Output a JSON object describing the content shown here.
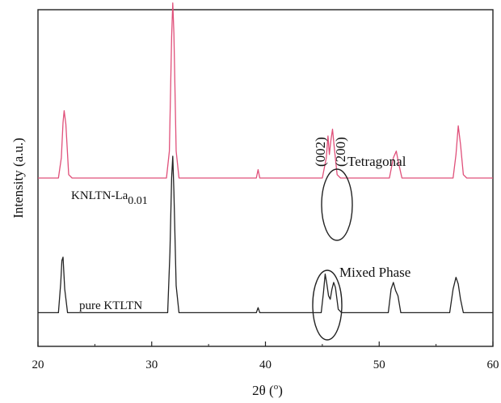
{
  "chart_data": {
    "type": "line",
    "xlabel": "2θ (°)",
    "xlabel_main": "2θ (",
    "xlabel_sup": "o",
    "xlabel_close": ")",
    "ylabel": "Intensity (a.u.)",
    "xlim": [
      20,
      60
    ],
    "x_ticks": [
      20,
      30,
      40,
      50,
      60
    ],
    "x_tick_labels": [
      "20",
      "30",
      "40",
      "50",
      "60"
    ],
    "y_ticks_shown": false,
    "grid": false,
    "legend": "none",
    "series": [
      {
        "name": "KNLTN-La0.01",
        "label_main": "KNLTN-La",
        "label_sub": "0.01",
        "color": "#e0507a",
        "baseline": 0.5,
        "points": [
          [
            20.0,
            0.5
          ],
          [
            21.8,
            0.5
          ],
          [
            22.05,
            0.56
          ],
          [
            22.2,
            0.665
          ],
          [
            22.3,
            0.7
          ],
          [
            22.45,
            0.66
          ],
          [
            22.7,
            0.51
          ],
          [
            23.0,
            0.5
          ],
          [
            31.3,
            0.5
          ],
          [
            31.55,
            0.58
          ],
          [
            31.75,
            0.92
          ],
          [
            31.85,
            1.02
          ],
          [
            31.95,
            0.93
          ],
          [
            32.15,
            0.58
          ],
          [
            32.4,
            0.5
          ],
          [
            39.2,
            0.5
          ],
          [
            39.35,
            0.525
          ],
          [
            39.5,
            0.5
          ],
          [
            45.0,
            0.5
          ],
          [
            45.35,
            0.56
          ],
          [
            45.5,
            0.625
          ],
          [
            45.62,
            0.57
          ],
          [
            45.75,
            0.61
          ],
          [
            45.9,
            0.645
          ],
          [
            46.05,
            0.59
          ],
          [
            46.3,
            0.51
          ],
          [
            46.6,
            0.5
          ],
          [
            50.9,
            0.5
          ],
          [
            51.25,
            0.56
          ],
          [
            51.5,
            0.58
          ],
          [
            51.7,
            0.545
          ],
          [
            52.0,
            0.5
          ],
          [
            56.5,
            0.5
          ],
          [
            56.75,
            0.57
          ],
          [
            56.95,
            0.655
          ],
          [
            57.15,
            0.6
          ],
          [
            57.4,
            0.51
          ],
          [
            57.7,
            0.5
          ],
          [
            60.0,
            0.5
          ]
        ]
      },
      {
        "name": "pure KTLTN",
        "label_main": "pure KTLTN",
        "color": "#222222",
        "baseline": 0.1,
        "points": [
          [
            20.0,
            0.1
          ],
          [
            21.8,
            0.1
          ],
          [
            22.0,
            0.19
          ],
          [
            22.1,
            0.255
          ],
          [
            22.2,
            0.265
          ],
          [
            22.35,
            0.17
          ],
          [
            22.6,
            0.1
          ],
          [
            31.4,
            0.1
          ],
          [
            31.6,
            0.28
          ],
          [
            31.75,
            0.5
          ],
          [
            31.85,
            0.565
          ],
          [
            31.95,
            0.46
          ],
          [
            32.15,
            0.18
          ],
          [
            32.4,
            0.1
          ],
          [
            39.2,
            0.1
          ],
          [
            39.35,
            0.115
          ],
          [
            39.5,
            0.1
          ],
          [
            44.9,
            0.1
          ],
          [
            45.1,
            0.16
          ],
          [
            45.25,
            0.215
          ],
          [
            45.4,
            0.185
          ],
          [
            45.55,
            0.15
          ],
          [
            45.7,
            0.14
          ],
          [
            45.85,
            0.17
          ],
          [
            46.0,
            0.19
          ],
          [
            46.15,
            0.175
          ],
          [
            46.4,
            0.11
          ],
          [
            46.7,
            0.1
          ],
          [
            50.8,
            0.1
          ],
          [
            51.05,
            0.17
          ],
          [
            51.25,
            0.19
          ],
          [
            51.45,
            0.165
          ],
          [
            51.65,
            0.15
          ],
          [
            51.9,
            0.1
          ],
          [
            56.2,
            0.1
          ],
          [
            56.5,
            0.17
          ],
          [
            56.75,
            0.205
          ],
          [
            56.95,
            0.185
          ],
          [
            57.15,
            0.14
          ],
          [
            57.4,
            0.1
          ],
          [
            60.0,
            0.1
          ]
        ]
      }
    ],
    "annotations": {
      "tetragonal": "Tetragonal",
      "mixed_phase": "Mixed Phase",
      "hkl_002": "(002)",
      "hkl_200": "(200)"
    }
  }
}
